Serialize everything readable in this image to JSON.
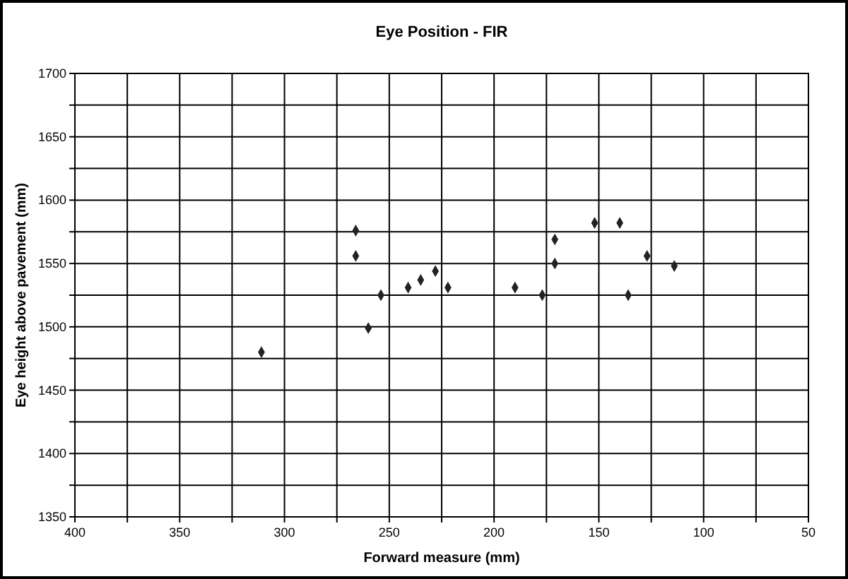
{
  "chart_data": {
    "type": "scatter",
    "title": "Eye Position - FIR",
    "xlabel": "Forward measure (mm)",
    "ylabel": "Eye height above pavement (mm)",
    "x": [
      311,
      266,
      266,
      260,
      254,
      241,
      235,
      228,
      222,
      190,
      177,
      171,
      171,
      152,
      140,
      136,
      127,
      114
    ],
    "values": [
      1480,
      1576,
      1556,
      1499,
      1525,
      1531,
      1537,
      1544,
      1531,
      1531,
      1525,
      1569,
      1550,
      1582,
      1582,
      1525,
      1556,
      1548
    ],
    "color": "#222222",
    "marker": "diamond",
    "grid": true,
    "xlim": [
      400,
      50
    ],
    "ylim": [
      1350,
      1700
    ],
    "xticks": [
      400,
      {
        "value": 375,
        "label": null
      },
      350,
      {
        "value": 325,
        "label": null
      },
      300,
      {
        "value": 275,
        "label": null
      },
      250,
      {
        "value": 225,
        "label": null
      },
      200,
      {
        "value": 175,
        "label": null
      },
      150,
      {
        "value": 125,
        "label": null
      },
      100,
      {
        "value": 75,
        "label": null
      },
      50
    ],
    "yticks": [
      1350,
      {
        "value": 1375,
        "label": null
      },
      1400,
      {
        "value": 1425,
        "label": null
      },
      1450,
      {
        "value": 1475,
        "label": null
      },
      1500,
      {
        "value": 1525,
        "label": null
      },
      1550,
      {
        "value": 1575,
        "label": null
      },
      1600,
      {
        "value": 1625,
        "label": null
      },
      1650,
      {
        "value": 1675,
        "label": null
      },
      1700
    ]
  }
}
